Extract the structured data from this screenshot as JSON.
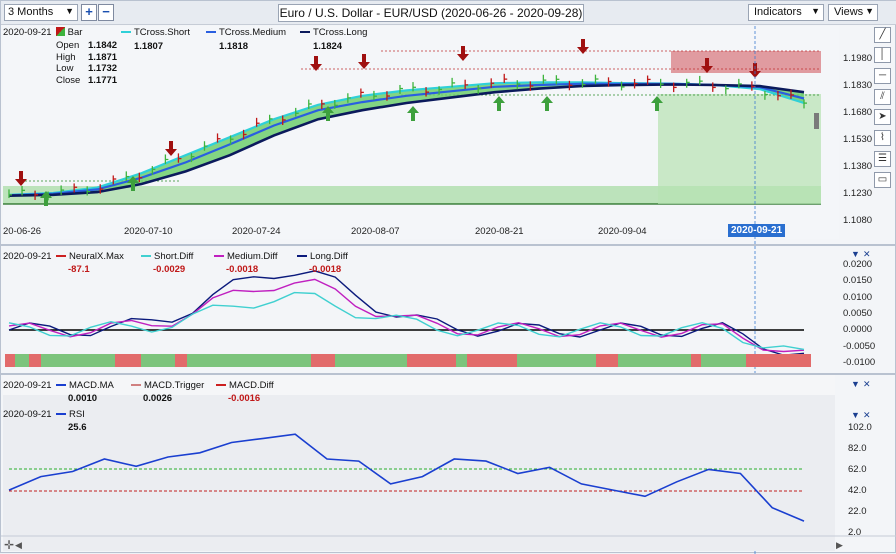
{
  "toolbar": {
    "period": "3 Months",
    "zoom_in": "+",
    "zoom_out": "−",
    "title": "Euro / U.S. Dollar - EUR/USD (2020-06-26 - 2020-09-28)",
    "indicators": "Indicators",
    "views": "Views"
  },
  "main_panel": {
    "date": "2020-09-21",
    "bar_label": "Bar",
    "ohlc": [
      {
        "k": "Open",
        "v": "1.1842"
      },
      {
        "k": "High",
        "v": "1.1871"
      },
      {
        "k": "Low",
        "v": "1.1732"
      },
      {
        "k": "Close",
        "v": "1.1771"
      }
    ],
    "legend": [
      {
        "name": "TCross.Short",
        "value": "1.1807",
        "color": "#2fd0d8"
      },
      {
        "name": "TCross.Medium",
        "value": "1.1818",
        "color": "#2a5fe0"
      },
      {
        "name": "TCross.Long",
        "value": "1.1824",
        "color": "#0b1a5c"
      }
    ],
    "y_ticks": [
      "1.1980",
      "1.1830",
      "1.1680",
      "1.1530",
      "1.1380",
      "1.1230",
      "1.1080"
    ],
    "x_ticks": [
      "20-06-26",
      "2020-07-10",
      "2020-07-24",
      "2020-08-07",
      "2020-08-21",
      "2020-09-04",
      "2020-09-21"
    ],
    "x_highlight": "2020-09-21"
  },
  "diff_panel": {
    "date": "2020-09-21",
    "legend": [
      {
        "name": "NeuralX.Max",
        "value": "-87.1",
        "color": "#cc2020"
      },
      {
        "name": "Short.Diff",
        "value": "-0.0029",
        "color": "#40d0d0"
      },
      {
        "name": "Medium.Diff",
        "value": "-0.0018",
        "color": "#c020c0"
      },
      {
        "name": "Long.Diff",
        "value": "-0.0018",
        "color": "#0b1a7c"
      }
    ],
    "y_ticks": [
      "0.0200",
      "0.0150",
      "0.0100",
      "0.0050",
      "0.0000",
      "-0.0050",
      "-0.0100"
    ]
  },
  "macd_panel": {
    "date": "2020-09-21",
    "legend": [
      {
        "name": "MACD.MA",
        "value": "0.0010",
        "color": "#1a3fd0"
      },
      {
        "name": "MACD.Trigger",
        "value": "0.0026",
        "color": "#d08080"
      },
      {
        "name": "MACD.Diff",
        "value": "-0.0016",
        "color": "#cc2020"
      }
    ]
  },
  "rsi_panel": {
    "date": "2020-09-21",
    "name": "RSI",
    "value": "25.6",
    "y_ticks": [
      "102.0",
      "82.0",
      "62.0",
      "42.0",
      "22.0",
      "2.0"
    ]
  },
  "colors": {
    "bull": "#3db43d",
    "bear": "#c01818",
    "cloud": "#7ad77a",
    "tcross_short": "#2fd0d8",
    "tcross_medium": "#2a5fe0",
    "tcross_long": "#0b1a5c",
    "rsi": "#1a3fd0"
  },
  "chart_data": {
    "type": "line",
    "series": [
      {
        "name": "TCross.Long",
        "values": [
          1.1215,
          1.122,
          1.1235,
          1.128,
          1.135,
          1.144,
          1.155,
          1.164,
          1.169,
          1.173,
          1.176,
          1.179,
          1.181,
          1.1825,
          1.183,
          1.1833,
          1.183,
          1.1824,
          1.179
        ]
      },
      {
        "name": "RSI",
        "values": [
          42,
          55,
          60,
          72,
          65,
          74,
          78,
          88,
          92,
          96,
          72,
          70,
          48,
          55,
          72,
          70,
          58,
          64,
          48,
          42,
          36,
          50,
          62,
          58,
          25,
          12
        ]
      }
    ]
  }
}
